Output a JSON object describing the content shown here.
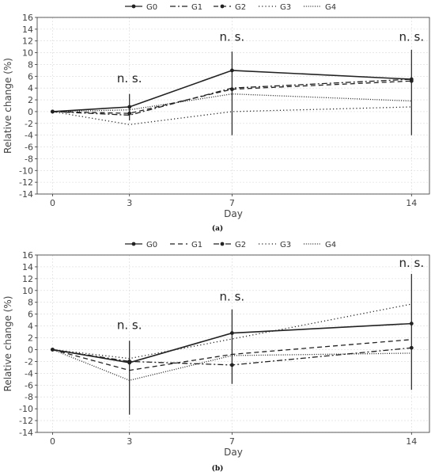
{
  "chart_data": [
    {
      "panel": "(a)",
      "type": "line",
      "xlabel": "Day",
      "ylabel": "Relative change (%)",
      "x": [
        0,
        3,
        7,
        14
      ],
      "xlim": [
        -0.6,
        14.7
      ],
      "ylim": [
        -14,
        16
      ],
      "yticks": [
        16,
        14,
        12,
        10,
        8,
        6,
        4,
        2,
        0,
        -2,
        -4,
        -6,
        -8,
        -10,
        -12,
        -14
      ],
      "xticks": [
        0,
        3,
        7,
        14
      ],
      "grid": true,
      "legend_position": "top-center",
      "series": [
        {
          "name": "G0",
          "values": [
            0,
            0.8,
            7.0,
            5.5
          ],
          "style": "solid",
          "marker": true
        },
        {
          "name": "G1",
          "values": [
            0,
            -0.6,
            4.0,
            5.5
          ],
          "style": "dashdot",
          "marker": false
        },
        {
          "name": "G2",
          "values": [
            0,
            -0.3,
            3.8,
            5.2
          ],
          "style": "dashed",
          "marker": true
        },
        {
          "name": "G3",
          "values": [
            0,
            -2.2,
            0.0,
            0.8
          ],
          "style": "dotted",
          "marker": false
        },
        {
          "name": "G4",
          "values": [
            0,
            0.3,
            3.0,
            1.8
          ],
          "style": "densely-dotted",
          "marker": false
        }
      ],
      "error_bars": [
        {
          "x": 3,
          "low": -1.5,
          "high": 3.0
        },
        {
          "x": 7,
          "low": -4.0,
          "high": 10.2
        },
        {
          "x": 14,
          "low": -4.0,
          "high": 10.5
        }
      ],
      "annotations": [
        {
          "x": 3,
          "y": 5.0,
          "text": "n. s."
        },
        {
          "x": 7,
          "y": 12.0,
          "text": "n. s."
        },
        {
          "x": 14,
          "y": 12.0,
          "text": "n. s."
        }
      ]
    },
    {
      "panel": "(b)",
      "type": "line",
      "xlabel": "Day",
      "ylabel": "Relative change (%)",
      "x": [
        0,
        3,
        7,
        14
      ],
      "xlim": [
        -0.6,
        14.7
      ],
      "ylim": [
        -14,
        16
      ],
      "yticks": [
        16,
        14,
        12,
        10,
        8,
        6,
        4,
        2,
        0,
        -2,
        -4,
        -6,
        -8,
        -10,
        -12,
        -14
      ],
      "xticks": [
        0,
        3,
        7,
        14
      ],
      "grid": true,
      "legend_position": "top-center",
      "series": [
        {
          "name": "G0",
          "values": [
            0,
            -2.2,
            2.8,
            4.4
          ],
          "style": "solid",
          "marker": true
        },
        {
          "name": "G1",
          "values": [
            0,
            -3.5,
            -0.8,
            1.7
          ],
          "style": "dashed",
          "marker": false
        },
        {
          "name": "G2",
          "values": [
            0,
            -2.0,
            -2.6,
            0.3
          ],
          "style": "dashdot",
          "marker": true
        },
        {
          "name": "G3",
          "values": [
            0,
            -1.5,
            1.8,
            7.7
          ],
          "style": "dotted",
          "marker": false
        },
        {
          "name": "G4",
          "values": [
            0,
            -5.2,
            -1.0,
            -0.6
          ],
          "style": "densely-dotted",
          "marker": false
        }
      ],
      "error_bars": [
        {
          "x": 3,
          "low": -11.0,
          "high": 1.5
        },
        {
          "x": 7,
          "low": -5.8,
          "high": 6.8
        },
        {
          "x": 14,
          "low": -6.8,
          "high": 12.8
        }
      ],
      "annotations": [
        {
          "x": 3,
          "y": 3.5,
          "text": "n. s."
        },
        {
          "x": 7,
          "y": 8.3,
          "text": "n. s."
        },
        {
          "x": 14,
          "y": 14.0,
          "text": "n. s."
        }
      ]
    }
  ],
  "legend_labels": [
    "G0",
    "G1",
    "G2",
    "G3",
    "G4"
  ],
  "captions": [
    "(a)",
    "(b)"
  ],
  "colors": {
    "line": "#222222",
    "grid": "#d9d9d9",
    "axis": "#333333"
  }
}
